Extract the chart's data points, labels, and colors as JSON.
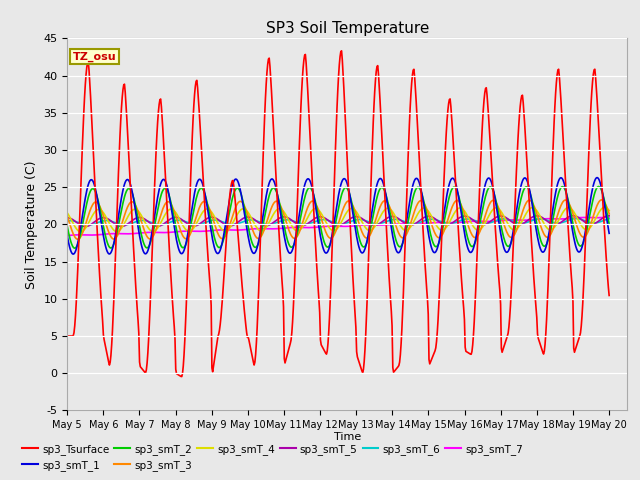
{
  "title": "SP3 Soil Temperature",
  "ylabel": "Soil Temperature (C)",
  "xlabel": "Time",
  "ylim": [
    -5,
    45
  ],
  "xlim": [
    0,
    15.5
  ],
  "background_color": "#e8e8e8",
  "tz_label": "TZ_osu",
  "colors": {
    "sp3_Tsurface": "#ff0000",
    "sp3_smT_1": "#0000dd",
    "sp3_smT_2": "#00cc00",
    "sp3_smT_3": "#ff8800",
    "sp3_smT_4": "#dddd00",
    "sp3_smT_5": "#aa00aa",
    "sp3_smT_6": "#00cccc",
    "sp3_smT_7": "#ff00ff"
  },
  "xtick_labels": [
    "May 5",
    "May 6",
    "May 7",
    "May 8",
    "May 9",
    "May 10",
    "May 11",
    "May 12",
    "May 13",
    "May 14",
    "May 15",
    "May 16",
    "May 17",
    "May 18",
    "May 19",
    "May 20"
  ],
  "ytick_labels": [
    "-5",
    "0",
    "5",
    "10",
    "15",
    "20",
    "25",
    "30",
    "35",
    "40",
    "45"
  ],
  "ytick_vals": [
    -5,
    0,
    5,
    10,
    15,
    20,
    25,
    30,
    35,
    40,
    45
  ],
  "daily_peaks_surface": [
    42,
    39,
    37,
    39.5,
    26,
    42.5,
    43,
    43.5,
    41.5,
    41,
    37,
    38.5,
    37.5,
    41,
    41
  ],
  "daily_troughs_surface": [
    5,
    1,
    0,
    -0.5,
    5,
    1,
    4,
    2.5,
    0,
    1,
    3,
    2.5,
    5,
    2.5,
    5
  ],
  "smT_base": [
    21.0,
    20.8,
    20.5,
    20.5,
    20.3,
    20.2,
    19.0
  ],
  "smT_amp": [
    5.0,
    4.0,
    2.5,
    1.5,
    0.6,
    0.3,
    0.1
  ],
  "smT_phase_lag_hours": [
    2,
    3,
    5,
    7,
    10,
    12,
    14
  ]
}
